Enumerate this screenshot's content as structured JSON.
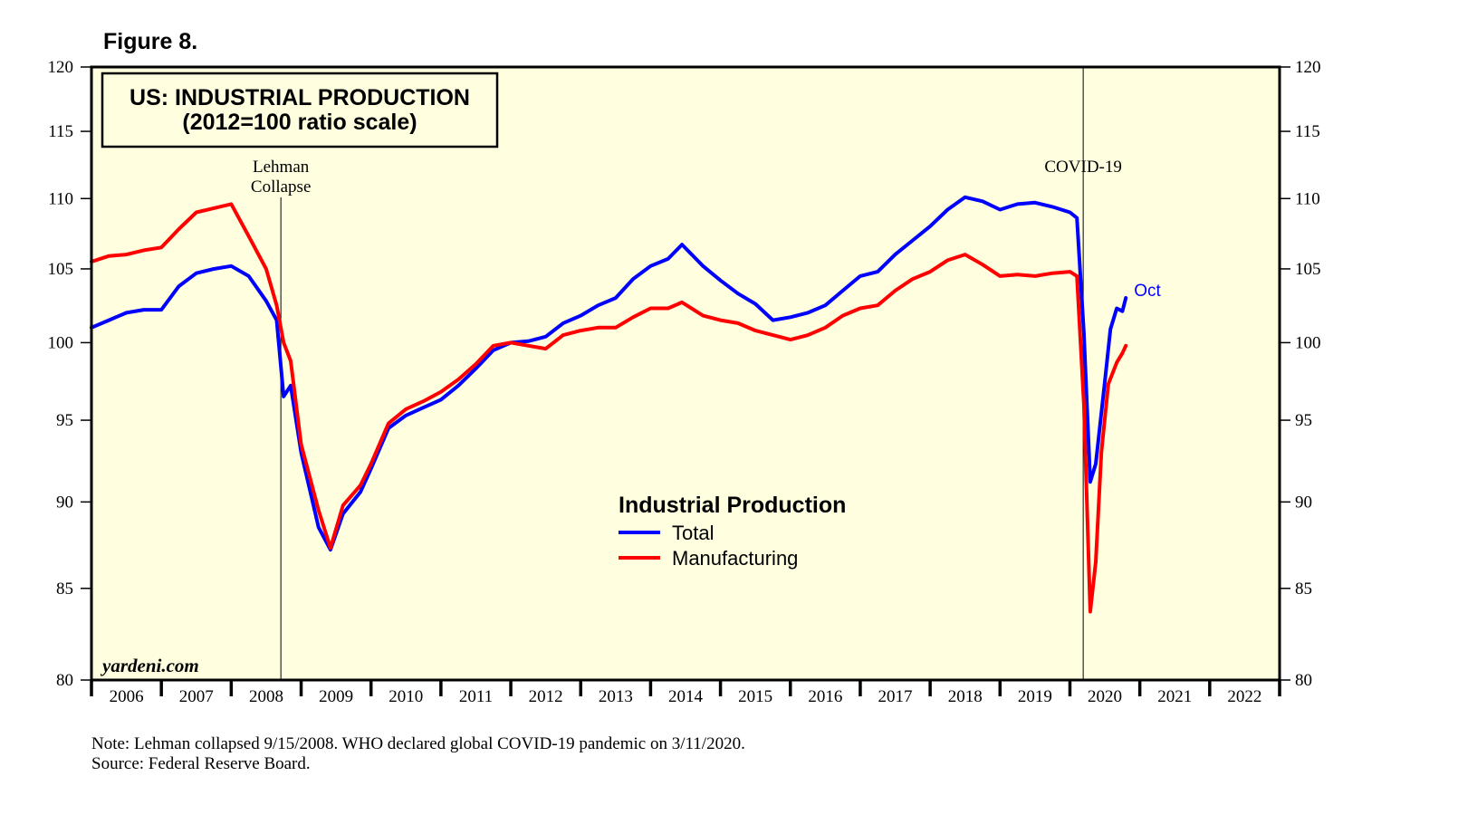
{
  "figure_label": "Figure 8.",
  "notes": {
    "note": "Note: Lehman collapsed 9/15/2008. WHO declared global COVID-19 pandemic on 3/11/2020.",
    "source": "Source: Federal Reserve Board."
  },
  "colors": {
    "background": "#ffffe0",
    "total": "#0000ff",
    "manufacturing": "#ff0000",
    "frame": "#000000"
  },
  "chart_data": {
    "type": "line",
    "title": "US: INDUSTRIAL PRODUCTION",
    "subtitle": "(2012=100 ratio scale)",
    "legend_title": "Industrial Production",
    "legend_position": "center",
    "watermark": "yardeni.com",
    "y_scale": "log",
    "ylim": [
      80,
      120
    ],
    "y_ticks": [
      "80",
      "85",
      "90",
      "95",
      "100",
      "105",
      "110",
      "115",
      "120"
    ],
    "xlim": [
      2006,
      2023
    ],
    "x_tick_labels": [
      "2006",
      "2007",
      "2008",
      "2009",
      "2010",
      "2011",
      "2012",
      "2013",
      "2014",
      "2015",
      "2016",
      "2017",
      "2018",
      "2019",
      "2020",
      "2021",
      "2022"
    ],
    "annotations": [
      {
        "x": 2008.71,
        "label": [
          "Lehman",
          "Collapse"
        ]
      },
      {
        "x": 2020.19,
        "label": [
          "COVID-19"
        ]
      }
    ],
    "end_label": "Oct",
    "series": [
      {
        "name": "Total",
        "color": "#0000ff",
        "points": [
          [
            2006.0,
            101.0
          ],
          [
            2006.25,
            101.5
          ],
          [
            2006.5,
            102.0
          ],
          [
            2006.75,
            102.2
          ],
          [
            2007.0,
            102.2
          ],
          [
            2007.25,
            103.8
          ],
          [
            2007.5,
            104.7
          ],
          [
            2007.75,
            105.0
          ],
          [
            2008.0,
            105.2
          ],
          [
            2008.25,
            104.5
          ],
          [
            2008.5,
            102.8
          ],
          [
            2008.65,
            101.5
          ],
          [
            2008.75,
            96.5
          ],
          [
            2008.85,
            97.2
          ],
          [
            2009.0,
            93.0
          ],
          [
            2009.25,
            88.5
          ],
          [
            2009.42,
            87.2
          ],
          [
            2009.6,
            89.3
          ],
          [
            2009.85,
            90.6
          ],
          [
            2010.0,
            92.0
          ],
          [
            2010.25,
            94.5
          ],
          [
            2010.5,
            95.3
          ],
          [
            2010.75,
            95.8
          ],
          [
            2011.0,
            96.3
          ],
          [
            2011.25,
            97.2
          ],
          [
            2011.5,
            98.3
          ],
          [
            2011.75,
            99.5
          ],
          [
            2012.0,
            100.0
          ],
          [
            2012.25,
            100.1
          ],
          [
            2012.5,
            100.4
          ],
          [
            2012.75,
            101.3
          ],
          [
            2013.0,
            101.8
          ],
          [
            2013.25,
            102.5
          ],
          [
            2013.5,
            103.0
          ],
          [
            2013.75,
            104.3
          ],
          [
            2014.0,
            105.2
          ],
          [
            2014.25,
            105.7
          ],
          [
            2014.45,
            106.7
          ],
          [
            2014.75,
            105.2
          ],
          [
            2015.0,
            104.2
          ],
          [
            2015.25,
            103.3
          ],
          [
            2015.5,
            102.6
          ],
          [
            2015.75,
            101.5
          ],
          [
            2016.0,
            101.7
          ],
          [
            2016.25,
            102.0
          ],
          [
            2016.5,
            102.5
          ],
          [
            2016.75,
            103.5
          ],
          [
            2017.0,
            104.5
          ],
          [
            2017.25,
            104.8
          ],
          [
            2017.5,
            106.0
          ],
          [
            2017.75,
            107.0
          ],
          [
            2018.0,
            108.0
          ],
          [
            2018.25,
            109.2
          ],
          [
            2018.5,
            110.1
          ],
          [
            2018.75,
            109.8
          ],
          [
            2019.0,
            109.2
          ],
          [
            2019.25,
            109.6
          ],
          [
            2019.5,
            109.7
          ],
          [
            2019.75,
            109.4
          ],
          [
            2020.0,
            109.0
          ],
          [
            2020.1,
            108.6
          ],
          [
            2020.2,
            100.6
          ],
          [
            2020.29,
            91.2
          ],
          [
            2020.37,
            92.3
          ],
          [
            2020.5,
            97.5
          ],
          [
            2020.58,
            100.9
          ],
          [
            2020.67,
            102.3
          ],
          [
            2020.75,
            102.1
          ],
          [
            2020.8,
            103.0
          ]
        ]
      },
      {
        "name": "Manufacturing",
        "color": "#ff0000",
        "points": [
          [
            2006.0,
            105.5
          ],
          [
            2006.25,
            105.9
          ],
          [
            2006.5,
            106.0
          ],
          [
            2006.75,
            106.3
          ],
          [
            2007.0,
            106.5
          ],
          [
            2007.25,
            107.8
          ],
          [
            2007.5,
            109.0
          ],
          [
            2007.75,
            109.3
          ],
          [
            2008.0,
            109.6
          ],
          [
            2008.25,
            107.3
          ],
          [
            2008.5,
            105.0
          ],
          [
            2008.65,
            102.5
          ],
          [
            2008.75,
            100.0
          ],
          [
            2008.85,
            98.8
          ],
          [
            2009.0,
            93.5
          ],
          [
            2009.25,
            89.5
          ],
          [
            2009.42,
            87.3
          ],
          [
            2009.6,
            89.8
          ],
          [
            2009.85,
            91.0
          ],
          [
            2010.0,
            92.3
          ],
          [
            2010.25,
            94.8
          ],
          [
            2010.5,
            95.7
          ],
          [
            2010.75,
            96.2
          ],
          [
            2011.0,
            96.8
          ],
          [
            2011.25,
            97.6
          ],
          [
            2011.5,
            98.6
          ],
          [
            2011.75,
            99.8
          ],
          [
            2012.0,
            100.0
          ],
          [
            2012.25,
            99.8
          ],
          [
            2012.5,
            99.6
          ],
          [
            2012.75,
            100.5
          ],
          [
            2013.0,
            100.8
          ],
          [
            2013.25,
            101.0
          ],
          [
            2013.5,
            101.0
          ],
          [
            2013.75,
            101.7
          ],
          [
            2014.0,
            102.3
          ],
          [
            2014.25,
            102.3
          ],
          [
            2014.45,
            102.7
          ],
          [
            2014.75,
            101.8
          ],
          [
            2015.0,
            101.5
          ],
          [
            2015.25,
            101.3
          ],
          [
            2015.5,
            100.8
          ],
          [
            2015.75,
            100.5
          ],
          [
            2016.0,
            100.2
          ],
          [
            2016.25,
            100.5
          ],
          [
            2016.5,
            101.0
          ],
          [
            2016.75,
            101.8
          ],
          [
            2017.0,
            102.3
          ],
          [
            2017.25,
            102.5
          ],
          [
            2017.5,
            103.5
          ],
          [
            2017.75,
            104.3
          ],
          [
            2018.0,
            104.8
          ],
          [
            2018.25,
            105.6
          ],
          [
            2018.5,
            106.0
          ],
          [
            2018.75,
            105.3
          ],
          [
            2019.0,
            104.5
          ],
          [
            2019.25,
            104.6
          ],
          [
            2019.5,
            104.5
          ],
          [
            2019.75,
            104.7
          ],
          [
            2020.0,
            104.8
          ],
          [
            2020.1,
            104.5
          ],
          [
            2020.2,
            96.0
          ],
          [
            2020.29,
            83.7
          ],
          [
            2020.37,
            86.5
          ],
          [
            2020.45,
            93.0
          ],
          [
            2020.55,
            97.3
          ],
          [
            2020.67,
            98.7
          ],
          [
            2020.75,
            99.3
          ],
          [
            2020.8,
            99.8
          ]
        ]
      }
    ]
  }
}
